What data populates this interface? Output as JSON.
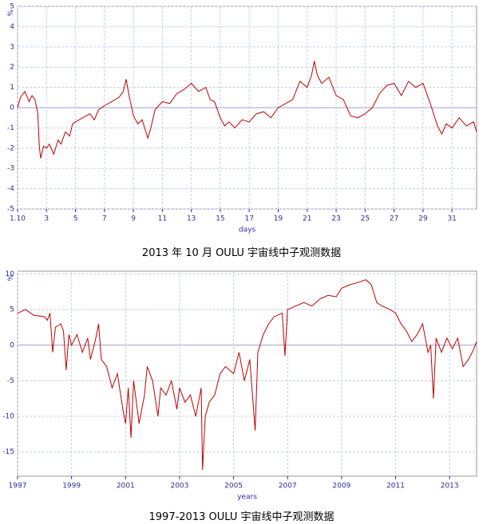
{
  "chart_data": [
    {
      "type": "line",
      "y_label": "%",
      "x_label": "days",
      "caption": "2013 年 10 月 OULU 宇宙线中子观测数据",
      "x": [
        1,
        1.2,
        1.5,
        1.8,
        2,
        2.2,
        2.4,
        2.5,
        2.6,
        2.8,
        3,
        3.2,
        3.5,
        3.8,
        4,
        4.3,
        4.6,
        4.8,
        5,
        5.5,
        6,
        6.3,
        6.6,
        7,
        7.5,
        8,
        8.3,
        8.5,
        8.7,
        9,
        9.3,
        9.6,
        10,
        10.2,
        10.5,
        11,
        11.5,
        12,
        12.5,
        13,
        13.5,
        14,
        14.3,
        14.6,
        15,
        15.3,
        15.6,
        16,
        16.5,
        17,
        17.5,
        18,
        18.5,
        19,
        19.5,
        20,
        20.5,
        21,
        21.3,
        21.5,
        21.7,
        22,
        22.5,
        23,
        23.5,
        24,
        24.5,
        25,
        25.5,
        26,
        26.5,
        27,
        27.5,
        28,
        28.5,
        29,
        29.5,
        30,
        30.3,
        30.6,
        31,
        31.5,
        32,
        32.5,
        32.7
      ],
      "values": [
        0,
        0.5,
        0.8,
        0.3,
        0.6,
        0.4,
        -0.3,
        -1.9,
        -2.5,
        -1.9,
        -2,
        -1.8,
        -2.3,
        -1.6,
        -1.8,
        -1.2,
        -1.4,
        -0.8,
        -0.7,
        -0.5,
        -0.3,
        -0.6,
        -0.1,
        0.1,
        0.3,
        0.5,
        0.8,
        1.4,
        0.6,
        -0.4,
        -0.8,
        -0.6,
        -1.5,
        -1,
        -0.1,
        0.3,
        0.2,
        0.7,
        0.9,
        1.2,
        0.8,
        1,
        0.4,
        0.3,
        -0.5,
        -0.9,
        -0.7,
        -1,
        -0.6,
        -0.7,
        -0.3,
        -0.2,
        -0.5,
        0,
        0.2,
        0.4,
        1.3,
        1,
        1.6,
        2.3,
        1.6,
        1.2,
        1.5,
        0.6,
        0.4,
        -0.4,
        -0.5,
        -0.3,
        0,
        0.7,
        1.1,
        1.2,
        0.6,
        1.3,
        1,
        1.2,
        0.2,
        -0.9,
        -1.3,
        -0.8,
        -1,
        -0.5,
        -0.9,
        -0.7,
        -1.2
      ],
      "color": "#c00000",
      "xlim": [
        1,
        32.7
      ],
      "ylim": [
        -5,
        5
      ],
      "xticks": [
        {
          "value": 1,
          "label": "1.10"
        },
        3,
        5,
        7,
        9,
        11,
        13,
        15,
        17,
        19,
        21,
        23,
        25,
        27,
        29,
        31
      ],
      "yticks": [
        -5,
        -4,
        -3,
        -2,
        -1,
        0,
        1,
        2,
        3,
        4,
        5
      ],
      "grid": true
    },
    {
      "type": "line",
      "y_label": "%",
      "x_label": "years",
      "caption": "1997-2013 OULU 宇宙线中子观测数据",
      "x": [
        1997,
        1997.3,
        1997.6,
        1998,
        1998.1,
        1998.2,
        1998.3,
        1998.4,
        1998.6,
        1998.7,
        1998.8,
        1998.9,
        1999,
        1999.2,
        1999.4,
        1999.6,
        1999.7,
        1999.9,
        2000,
        2000.1,
        2000.3,
        2000.5,
        2000.7,
        2000.9,
        2001,
        2001.1,
        2001.2,
        2001.3,
        2001.4,
        2001.5,
        2001.7,
        2001.8,
        2002,
        2002.2,
        2002.3,
        2002.5,
        2002.7,
        2002.9,
        2003,
        2003.2,
        2003.4,
        2003.6,
        2003.8,
        2003.85,
        2003.95,
        2004.1,
        2004.3,
        2004.5,
        2004.7,
        2005,
        2005.2,
        2005.4,
        2005.6,
        2005.8,
        2005.9,
        2006.1,
        2006.3,
        2006.5,
        2006.8,
        2006.9,
        2007,
        2007.3,
        2007.6,
        2007.9,
        2008.2,
        2008.5,
        2008.8,
        2009,
        2009.3,
        2009.6,
        2009.9,
        2010.1,
        2010.3,
        2010.5,
        2010.8,
        2011,
        2011.2,
        2011.4,
        2011.6,
        2011.8,
        2012,
        2012.2,
        2012.3,
        2012.4,
        2012.5,
        2012.7,
        2012.9,
        2013.1,
        2013.3,
        2013.5,
        2013.7,
        2013.9,
        2014
      ],
      "values": [
        4.5,
        5,
        4.2,
        4,
        3.5,
        4.5,
        -1,
        2.5,
        3,
        2,
        -3.5,
        1.5,
        0,
        1.5,
        -1,
        1,
        -2,
        1,
        3,
        -2,
        -3,
        -6,
        -4,
        -9,
        -11,
        -6,
        -13,
        -5,
        -8,
        -11,
        -7,
        -3,
        -5,
        -10,
        -6,
        -7,
        -5,
        -9,
        -6,
        -8,
        -7,
        -10,
        -6,
        -17.5,
        -10,
        -8,
        -7,
        -4,
        -3,
        -4,
        -1,
        -5,
        -2,
        -12,
        -1,
        1.5,
        3,
        4,
        4.5,
        -1.5,
        5,
        5.5,
        6,
        5.5,
        6.5,
        7,
        6.8,
        8,
        8.5,
        8.8,
        9.2,
        8.5,
        6,
        5.5,
        5,
        4.5,
        3,
        2,
        0.5,
        1.5,
        3,
        -1,
        0,
        -7.5,
        1,
        -1,
        1,
        -0.5,
        1,
        -3,
        -2,
        -0.5,
        0.5
      ],
      "color": "#c00000",
      "xlim": [
        1997,
        2014
      ],
      "ylim": [
        -18.4,
        10.4
      ],
      "xticks": [
        1997,
        1999,
        2001,
        2003,
        2005,
        2007,
        2009,
        2011,
        2013
      ],
      "yticks": [
        -15,
        -10,
        -5,
        0,
        5,
        10
      ],
      "grid": true
    }
  ]
}
